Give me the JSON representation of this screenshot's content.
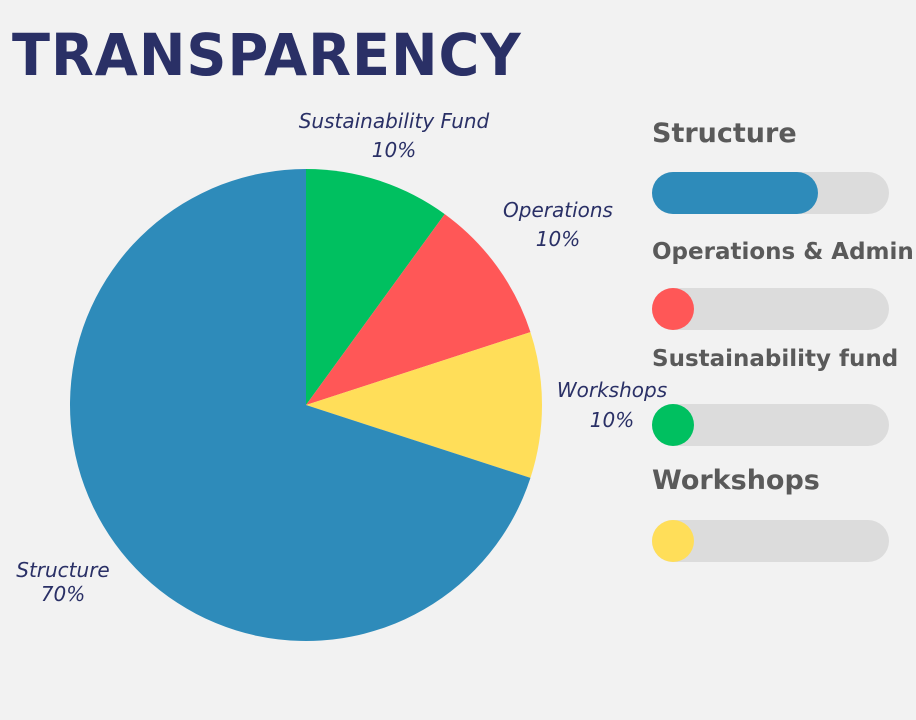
{
  "title": "TRANSPARENCY",
  "chart_data": {
    "type": "pie",
    "slices": [
      {
        "label": "Sustainability Fund",
        "value": 10,
        "value_label": "10%",
        "color": "#00c060"
      },
      {
        "label": "Operations",
        "value": 10,
        "value_label": "10%",
        "color": "#ff5757"
      },
      {
        "label": "Workshops",
        "value": 10,
        "value_label": "10%",
        "color": "#ffde59"
      },
      {
        "label": "Structure",
        "value": 70,
        "value_label": "70%",
        "color": "#2e8bba"
      }
    ]
  },
  "progress_bars": [
    {
      "label": "Structure",
      "fraction": 0.7,
      "color": "#2e8bba"
    },
    {
      "label": "Operations & Admin",
      "fraction": 0.1,
      "color": "#ff5757"
    },
    {
      "label": "Sustainability fund",
      "fraction": 0.1,
      "color": "#00c060"
    },
    {
      "label": "Workshops",
      "fraction": 0.1,
      "color": "#ffde59"
    }
  ]
}
